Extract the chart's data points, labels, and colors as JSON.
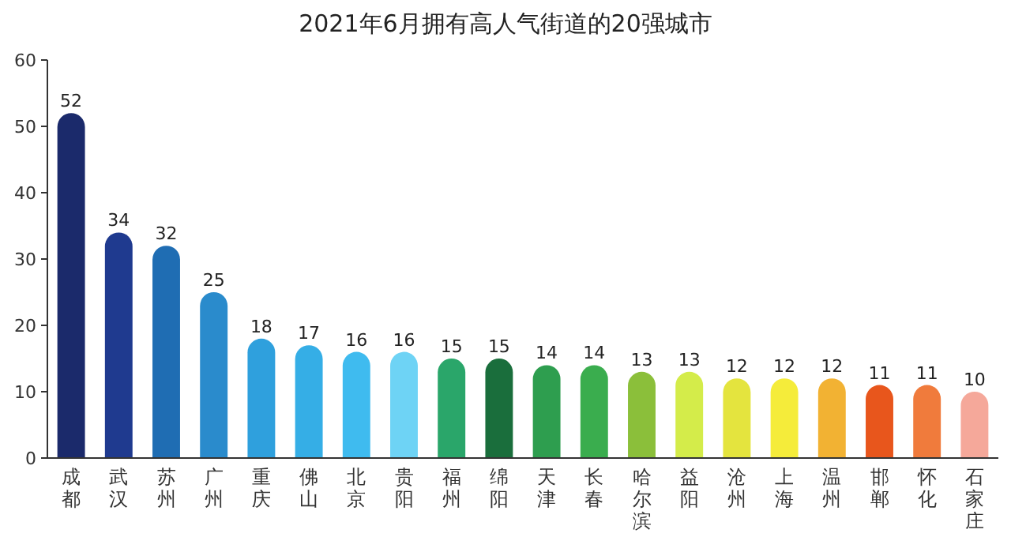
{
  "chart_data": {
    "type": "bar",
    "title": "2021年6月拥有高人气街道的20强城市",
    "categories": [
      "成都",
      "武汉",
      "苏州",
      "广州",
      "重庆",
      "佛山",
      "北京",
      "贵阳",
      "福州",
      "绵阳",
      "天津",
      "长春",
      "哈尔滨",
      "益阳",
      "沧州",
      "上海",
      "温州",
      "邯郸",
      "怀化",
      "石家庄"
    ],
    "values": [
      52,
      34,
      32,
      25,
      18,
      17,
      16,
      16,
      15,
      15,
      14,
      14,
      13,
      13,
      12,
      12,
      12,
      11,
      11,
      10
    ],
    "colors": [
      "#1b2a6b",
      "#1f3a8f",
      "#1f6db3",
      "#2a8bcc",
      "#2fa0dd",
      "#35aee6",
      "#3fbbef",
      "#6ed3f5",
      "#2aa66a",
      "#1a6e3c",
      "#2e9e4f",
      "#3aad4e",
      "#8bbf3a",
      "#d4ec4a",
      "#e4e43e",
      "#f5ec3a",
      "#f2b233",
      "#e8561c",
      "#f07b3c",
      "#f5a89a"
    ],
    "ylim": [
      0,
      60
    ],
    "yticks": [
      0,
      10,
      20,
      30,
      40,
      50,
      60
    ],
    "data_labels": true,
    "grid": false
  }
}
